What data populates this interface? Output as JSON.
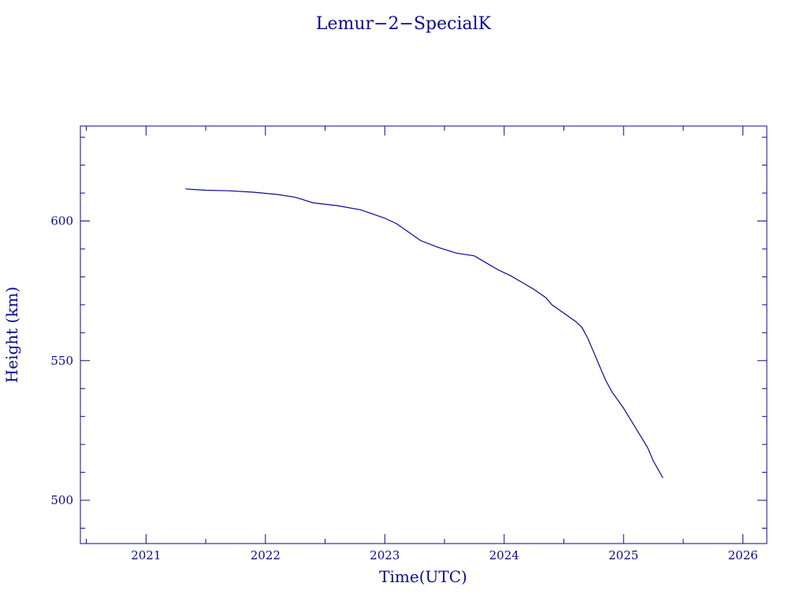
{
  "chart_data": {
    "type": "line",
    "title": "Lemur−2−SpecialK",
    "xlabel": "Time(UTC)",
    "ylabel": "Height (km)",
    "xlim": [
      2020.45,
      2026.2
    ],
    "ylim": [
      484.5,
      634
    ],
    "x_ticks": [
      2021,
      2022,
      2023,
      2024,
      2025,
      2026
    ],
    "x_tick_labels": [
      "2021",
      "2022",
      "2023",
      "2024",
      "2025",
      "2026"
    ],
    "y_ticks": [
      500,
      550,
      600
    ],
    "y_tick_labels": [
      "500",
      "550",
      "600"
    ],
    "grid": false,
    "line_color": "#0a0a8c",
    "series": [
      {
        "x": [
          2021.33,
          2021.5,
          2021.7,
          2021.9,
          2022.1,
          2022.25,
          2022.4,
          2022.6,
          2022.8,
          2022.9,
          2023.0,
          2023.1,
          2023.2,
          2023.3,
          2023.45,
          2023.6,
          2023.75,
          2023.85,
          2023.95,
          2024.05,
          2024.15,
          2024.25,
          2024.35,
          2024.4,
          2024.5,
          2024.6,
          2024.65,
          2024.7,
          2024.75,
          2024.8,
          2024.85,
          2024.9,
          2025.0,
          2025.1,
          2025.2,
          2025.25,
          2025.33
        ],
        "y": [
          611.5,
          611,
          610.8,
          610.3,
          609.5,
          608.5,
          606.5,
          605.5,
          604,
          602.5,
          601,
          599,
          596,
          593,
          590.5,
          588.5,
          587.5,
          585,
          582.5,
          580.5,
          578,
          575.5,
          572.5,
          570,
          567,
          564,
          562,
          558,
          553,
          548,
          543,
          539,
          533,
          526,
          519,
          514,
          508
        ]
      }
    ]
  }
}
